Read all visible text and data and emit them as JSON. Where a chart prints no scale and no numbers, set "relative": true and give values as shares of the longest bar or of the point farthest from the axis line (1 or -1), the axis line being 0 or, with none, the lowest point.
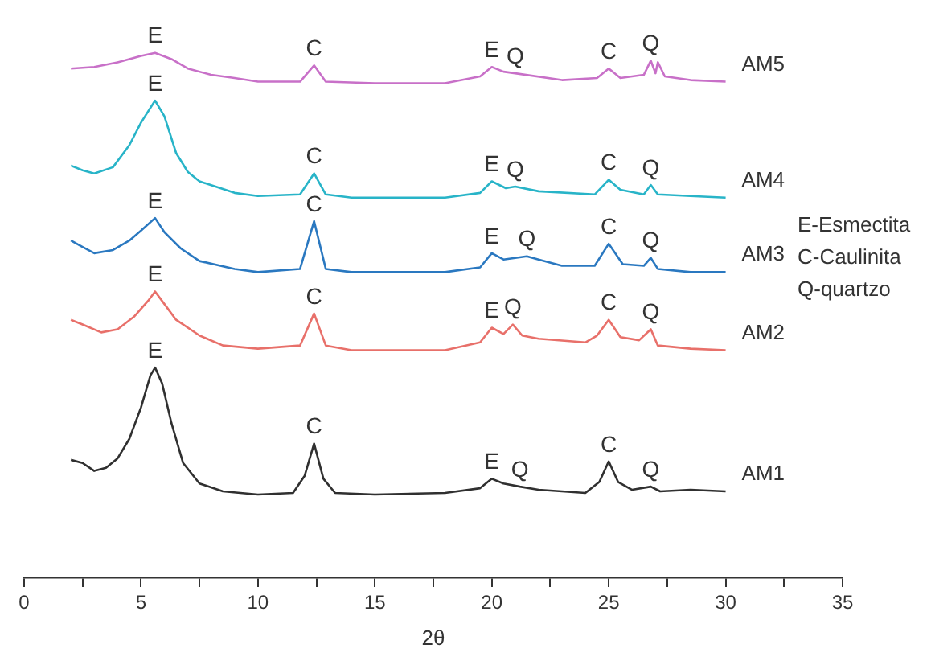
{
  "chart_data": {
    "type": "line",
    "relative": true,
    "xlabel": "2θ",
    "xlim": [
      0,
      35
    ],
    "xticks": [
      0,
      {
        "value": 2.5,
        "label": null
      },
      5,
      {
        "value": 7.5,
        "label": null
      },
      10,
      {
        "value": 12.5,
        "label": null
      },
      15,
      {
        "value": 17.5,
        "label": null
      },
      20,
      {
        "value": 22.5,
        "label": null
      },
      25,
      {
        "value": 27.5,
        "label": null
      },
      30,
      {
        "value": 32.5,
        "label": null
      },
      35
    ],
    "grid": false,
    "legend": false,
    "marker": "none",
    "line_style": "solid",
    "series": [
      {
        "name": "AM1",
        "color": "#303030",
        "x": [
          2,
          2.5,
          3,
          3.5,
          4,
          4.5,
          5,
          5.4,
          5.6,
          5.9,
          6.3,
          6.8,
          7.5,
          8.5,
          10,
          11.5,
          12,
          12.4,
          12.8,
          13.3,
          15,
          18,
          19.5,
          20,
          20.5,
          21.2,
          22,
          24,
          24.6,
          25,
          25.4,
          26,
          26.8,
          27.2,
          28.5,
          30
        ],
        "values": [
          0.224,
          0.218,
          0.203,
          0.209,
          0.227,
          0.264,
          0.324,
          0.385,
          0.4,
          0.37,
          0.294,
          0.218,
          0.179,
          0.164,
          0.158,
          0.161,
          0.194,
          0.255,
          0.188,
          0.161,
          0.158,
          0.161,
          0.17,
          0.188,
          0.179,
          0.173,
          0.167,
          0.161,
          0.182,
          0.221,
          0.182,
          0.167,
          0.173,
          0.164,
          0.167,
          0.164
        ]
      },
      {
        "name": "AM2",
        "color": "#e8706a",
        "x": [
          2,
          2.5,
          3.3,
          4,
          4.7,
          5.3,
          5.6,
          6,
          6.5,
          7.5,
          8.5,
          10,
          11.8,
          12.4,
          12.9,
          14,
          18,
          19.5,
          20,
          20.5,
          20.9,
          21.3,
          22,
          24,
          24.5,
          25,
          25.5,
          26.3,
          26.8,
          27.1,
          28.5,
          30
        ],
        "values": [
          0.491,
          0.482,
          0.467,
          0.473,
          0.497,
          0.527,
          0.545,
          0.521,
          0.491,
          0.461,
          0.442,
          0.436,
          0.442,
          0.503,
          0.442,
          0.433,
          0.433,
          0.448,
          0.476,
          0.464,
          0.482,
          0.461,
          0.455,
          0.448,
          0.461,
          0.491,
          0.458,
          0.452,
          0.473,
          0.442,
          0.436,
          0.433
        ]
      },
      {
        "name": "AM3",
        "color": "#2a78c0",
        "x": [
          2,
          2.5,
          3,
          3.8,
          4.5,
          5,
          5.6,
          6,
          6.7,
          7.5,
          9,
          10,
          11.8,
          12.4,
          12.9,
          14,
          18,
          19.5,
          20,
          20.5,
          21.5,
          22,
          23,
          24.4,
          25,
          25.6,
          26.5,
          26.8,
          27.1,
          28.5,
          30
        ],
        "values": [
          0.642,
          0.63,
          0.618,
          0.624,
          0.642,
          0.661,
          0.685,
          0.658,
          0.627,
          0.603,
          0.588,
          0.582,
          0.588,
          0.679,
          0.588,
          0.582,
          0.582,
          0.591,
          0.618,
          0.606,
          0.612,
          0.606,
          0.594,
          0.594,
          0.636,
          0.597,
          0.594,
          0.609,
          0.588,
          0.582,
          0.582
        ]
      },
      {
        "name": "AM4",
        "color": "#28b4c8",
        "x": [
          2,
          2.5,
          3,
          3.8,
          4.5,
          5,
          5.6,
          6,
          6.5,
          7,
          7.5,
          9,
          10,
          11.8,
          12.4,
          12.9,
          14,
          18,
          19.5,
          20,
          20.6,
          21,
          22,
          24.4,
          25,
          25.5,
          26.5,
          26.8,
          27.1,
          28.5,
          30
        ],
        "values": [
          0.785,
          0.776,
          0.77,
          0.782,
          0.824,
          0.867,
          0.909,
          0.879,
          0.809,
          0.773,
          0.755,
          0.733,
          0.727,
          0.73,
          0.77,
          0.73,
          0.724,
          0.724,
          0.733,
          0.755,
          0.742,
          0.745,
          0.736,
          0.73,
          0.758,
          0.739,
          0.73,
          0.748,
          0.73,
          0.727,
          0.724
        ]
      },
      {
        "name": "AM5",
        "color": "#c870c8",
        "x": [
          2,
          3,
          4,
          5,
          5.6,
          6.3,
          7,
          8,
          9,
          10,
          11.8,
          12.4,
          12.9,
          15,
          18,
          19.5,
          20,
          20.5,
          21,
          23,
          24.5,
          25,
          25.5,
          26.5,
          26.8,
          27,
          27.1,
          27.4,
          28.5,
          30
        ],
        "values": [
          0.97,
          0.973,
          0.982,
          0.994,
          1,
          0.988,
          0.97,
          0.958,
          0.952,
          0.945,
          0.945,
          0.976,
          0.945,
          0.942,
          0.942,
          0.955,
          0.973,
          0.964,
          0.961,
          0.948,
          0.952,
          0.97,
          0.952,
          0.958,
          0.985,
          0.961,
          0.982,
          0.955,
          0.948,
          0.945
        ]
      }
    ],
    "annotations": [
      {
        "text": "E",
        "x": 5.6,
        "y": 0.4
      },
      {
        "text": "C",
        "x": 12.4,
        "y": 0.255
      },
      {
        "text": "E",
        "x": 20,
        "y": 0.188
      },
      {
        "text": "Q",
        "x": 21.2,
        "y": 0.173
      },
      {
        "text": "C",
        "x": 25,
        "y": 0.221
      },
      {
        "text": "Q",
        "x": 26.8,
        "y": 0.173
      },
      {
        "text": "E",
        "x": 5.6,
        "y": 0.545
      },
      {
        "text": "C",
        "x": 12.4,
        "y": 0.503
      },
      {
        "text": "E",
        "x": 20,
        "y": 0.476
      },
      {
        "text": "Q",
        "x": 20.9,
        "y": 0.482
      },
      {
        "text": "C",
        "x": 25,
        "y": 0.491
      },
      {
        "text": "Q",
        "x": 26.8,
        "y": 0.473
      },
      {
        "text": "E",
        "x": 5.6,
        "y": 0.685
      },
      {
        "text": "C",
        "x": 12.4,
        "y": 0.679
      },
      {
        "text": "E",
        "x": 20,
        "y": 0.618
      },
      {
        "text": "Q",
        "x": 21.5,
        "y": 0.612
      },
      {
        "text": "C",
        "x": 25,
        "y": 0.636
      },
      {
        "text": "Q",
        "x": 26.8,
        "y": 0.609
      },
      {
        "text": "E",
        "x": 5.6,
        "y": 0.909
      },
      {
        "text": "C",
        "x": 12.4,
        "y": 0.77
      },
      {
        "text": "E",
        "x": 20,
        "y": 0.755
      },
      {
        "text": "Q",
        "x": 21,
        "y": 0.745
      },
      {
        "text": "C",
        "x": 25,
        "y": 0.758
      },
      {
        "text": "Q",
        "x": 26.8,
        "y": 0.748
      },
      {
        "text": "E",
        "x": 5.6,
        "y": 1
      },
      {
        "text": "C",
        "x": 12.4,
        "y": 0.976
      },
      {
        "text": "E",
        "x": 20,
        "y": 0.973
      },
      {
        "text": "Q",
        "x": 21,
        "y": 0.961
      },
      {
        "text": "C",
        "x": 25,
        "y": 0.97
      },
      {
        "text": "Q",
        "x": 26.8,
        "y": 0.985
      },
      "E-Esmectita",
      "C-Caulinita",
      "Q-quartzo"
    ]
  }
}
